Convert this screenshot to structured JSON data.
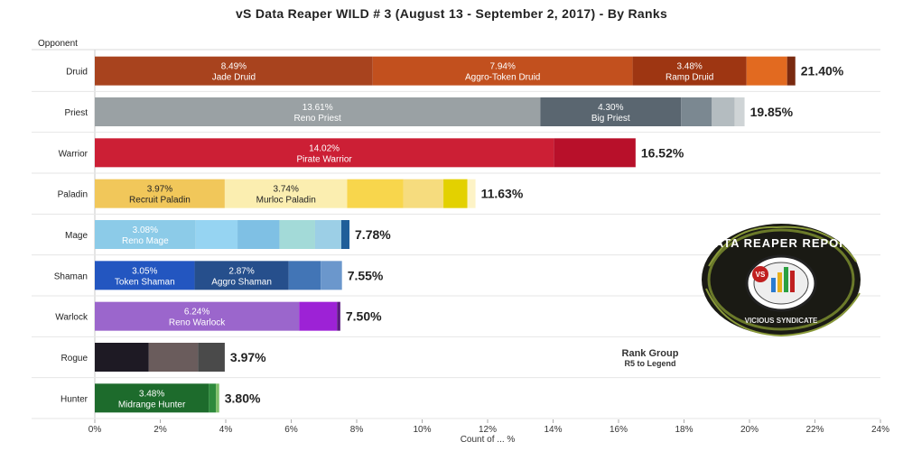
{
  "title": "vS Data Reaper WILD # 3 (August 13 - September 2, 2017) - By Ranks",
  "rank_group": {
    "title": "Rank Group",
    "value": "R5 to Legend"
  },
  "logo": {
    "top_text": "DATA REAPER REPORT",
    "bottom_text": "VICIOUS SYNDICATE",
    "badge": "VS"
  },
  "chart_data": {
    "type": "bar",
    "orientation": "horizontal",
    "stacked": true,
    "ylabel": "Opponent",
    "xlabel": "Count of ... %",
    "xlim": [
      0,
      24
    ],
    "xticks": [
      "0%",
      "2%",
      "4%",
      "6%",
      "8%",
      "10%",
      "12%",
      "14%",
      "16%",
      "18%",
      "20%",
      "22%",
      "24%"
    ],
    "grid": true,
    "categories": [
      "Druid",
      "Priest",
      "Warrior",
      "Paladin",
      "Mage",
      "Shaman",
      "Warlock",
      "Rogue",
      "Hunter"
    ],
    "totals": [
      "21.40%",
      "19.85%",
      "16.52%",
      "11.63%",
      "7.78%",
      "7.55%",
      "7.50%",
      "3.97%",
      "3.80%"
    ],
    "bars": [
      {
        "category": "Druid",
        "total": 21.4,
        "segments": [
          {
            "value": 8.49,
            "pct": "8.49%",
            "label": "Jade Druid",
            "color": "#a8431e"
          },
          {
            "value": 7.94,
            "pct": "7.94%",
            "label": "Aggro-Token Druid",
            "color": "#c2501e"
          },
          {
            "value": 3.48,
            "pct": "3.48%",
            "label": "Ramp Druid",
            "color": "#9e3612"
          },
          {
            "value": 1.24,
            "color": "#e26a20"
          },
          {
            "value": 0.25,
            "color": "#7a2a10"
          }
        ]
      },
      {
        "category": "Priest",
        "total": 19.85,
        "segments": [
          {
            "value": 13.61,
            "pct": "13.61%",
            "label": "Reno Priest",
            "color": "#9aa1a4"
          },
          {
            "value": 4.3,
            "pct": "4.30%",
            "label": "Big Priest",
            "color": "#5a6670"
          },
          {
            "value": 0.94,
            "color": "#7b8891"
          },
          {
            "value": 0.7,
            "color": "#b4bcc0"
          },
          {
            "value": 0.3,
            "color": "#cfd4d6"
          }
        ]
      },
      {
        "category": "Warrior",
        "total": 16.52,
        "segments": [
          {
            "value": 14.02,
            "pct": "14.02%",
            "label": "Pirate Warrior",
            "color": "#cc1f35"
          },
          {
            "value": 2.5,
            "color": "#b8102a"
          }
        ]
      },
      {
        "category": "Paladin",
        "total": 11.63,
        "segments": [
          {
            "value": 3.97,
            "pct": "3.97%",
            "label": "Recruit Paladin",
            "color": "#f1c75a"
          },
          {
            "value": 3.74,
            "pct": "3.74%",
            "label": "Murloc Paladin",
            "color": "#fbeeb0"
          },
          {
            "value": 1.71,
            "color": "#f8d64c"
          },
          {
            "value": 1.23,
            "color": "#f6dc7e"
          },
          {
            "value": 0.73,
            "color": "#e3d100"
          },
          {
            "value": 0.25,
            "color": "#fdf3c6"
          }
        ]
      },
      {
        "category": "Mage",
        "total": 7.78,
        "segments": [
          {
            "value": 3.08,
            "pct": "3.08%",
            "label": "Reno Mage",
            "color": "#8ccbe8"
          },
          {
            "value": 1.28,
            "color": "#96d4f2"
          },
          {
            "value": 1.28,
            "color": "#7fc0e4"
          },
          {
            "value": 1.09,
            "color": "#a3dad8"
          },
          {
            "value": 0.8,
            "color": "#9ccfe6"
          },
          {
            "value": 0.25,
            "color": "#1f5e99"
          }
        ]
      },
      {
        "category": "Shaman",
        "total": 7.55,
        "segments": [
          {
            "value": 3.05,
            "pct": "3.05%",
            "label": "Token Shaman",
            "color": "#2356c0"
          },
          {
            "value": 2.87,
            "pct": "2.87%",
            "label": "Aggro Shaman",
            "color": "#264f8c"
          },
          {
            "value": 0.98,
            "color": "#4275b6"
          },
          {
            "value": 0.65,
            "color": "#6b97cc"
          }
        ]
      },
      {
        "category": "Warlock",
        "total": 7.5,
        "segments": [
          {
            "value": 6.24,
            "pct": "6.24%",
            "label": "Reno Warlock",
            "color": "#9b66cc"
          },
          {
            "value": 1.16,
            "color": "#9d22d6"
          },
          {
            "value": 0.1,
            "color": "#5c1a80"
          }
        ]
      },
      {
        "category": "Rogue",
        "total": 3.97,
        "segments": [
          {
            "value": 1.65,
            "color": "#1e1a24"
          },
          {
            "value": 1.5,
            "color": "#6a5c5c"
          },
          {
            "value": 0.82,
            "color": "#4a4a4a"
          }
        ]
      },
      {
        "category": "Hunter",
        "total": 3.8,
        "segments": [
          {
            "value": 3.48,
            "pct": "3.48%",
            "label": "Midrange Hunter",
            "color": "#1d6b2c"
          },
          {
            "value": 0.22,
            "color": "#2e8a3c"
          },
          {
            "value": 0.1,
            "color": "#7fbf6a"
          }
        ]
      }
    ]
  }
}
